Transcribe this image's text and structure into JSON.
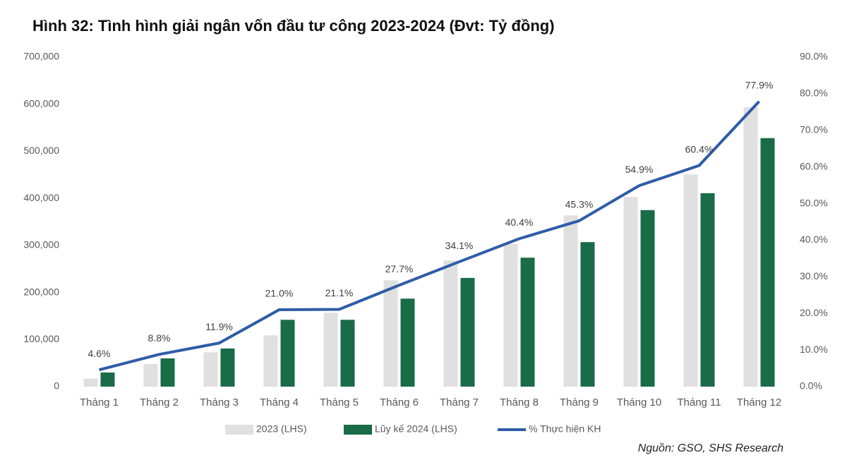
{
  "chart_data": {
    "type": "bar-line",
    "title": "Hình 32: Tình hình giải ngân vốn đầu tư công 2023-2024 (Đvt: Tỷ đồng)",
    "source": "Nguồn: GSO, SHS Research",
    "categories": [
      "Tháng 1",
      "Tháng 2",
      "Tháng 3",
      "Tháng 4",
      "Tháng 5",
      "Tháng 6",
      "Tháng 7",
      "Tháng 8",
      "Tháng 9",
      "Tháng 10",
      "Tháng 11",
      "Tháng 12"
    ],
    "series": [
      {
        "name": "2023 (LHS)",
        "type": "bar",
        "color": "#e0e0e0",
        "values": [
          17000,
          48000,
          73000,
          109000,
          157000,
          226000,
          268000,
          303000,
          364000,
          403000,
          451000,
          594000
        ]
      },
      {
        "name": "Lũy kế 2024 (LHS)",
        "type": "bar",
        "color": "#1a6b47",
        "values": [
          30000,
          60000,
          81000,
          142000,
          142000,
          187000,
          231000,
          274000,
          307000,
          375000,
          411000,
          528000
        ]
      },
      {
        "name": "% Thực hiện KH",
        "type": "line",
        "axis": "y2",
        "color": "#2e5ca8",
        "values": [
          4.6,
          8.8,
          11.9,
          21.0,
          21.1,
          27.7,
          34.1,
          40.4,
          45.3,
          54.9,
          60.4,
          77.9
        ],
        "value_labels": [
          "4.6%",
          "8.8%",
          "11.9%",
          "21.0%",
          "21.1%",
          "27.7%",
          "34.1%",
          "40.4%",
          "45.3%",
          "54.9%",
          "60.4%",
          "77.9%"
        ]
      }
    ],
    "ylim": [
      0,
      700000
    ],
    "yticks": [
      0,
      {
        "value": 100000,
        "label": "100,000"
      },
      {
        "value": 200000,
        "label": "200,000"
      },
      {
        "value": 300000,
        "label": "300,000"
      },
      {
        "value": 400000,
        "label": "400,000"
      },
      {
        "value": 500000,
        "label": "500,000"
      },
      {
        "value": 600000,
        "label": "600,000"
      },
      {
        "value": 700000,
        "label": "700,000"
      }
    ],
    "y2lim": [
      0,
      90
    ],
    "y2ticks": [
      {
        "value": 0,
        "label": "0.0%"
      },
      {
        "value": 10,
        "label": "10.0%"
      },
      {
        "value": 20,
        "label": "20.0%"
      },
      {
        "value": 30,
        "label": "30.0%"
      },
      {
        "value": 40,
        "label": "40.0%"
      },
      {
        "value": 50,
        "label": "50.0%"
      },
      {
        "value": 60,
        "label": "60.0%"
      },
      {
        "value": 70,
        "label": "70.0%"
      },
      {
        "value": 80,
        "label": "80.0%"
      },
      {
        "value": 90,
        "label": "90.0%"
      }
    ],
    "legend": "bottom"
  }
}
